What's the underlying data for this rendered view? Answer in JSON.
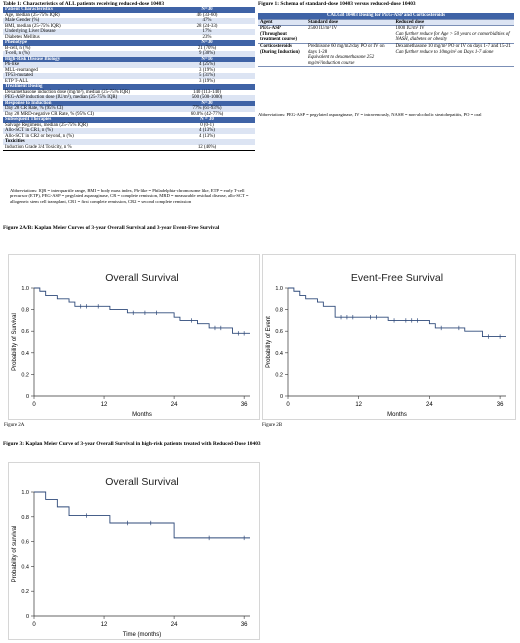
{
  "table1": {
    "caption": "Table 1: Characteristics of ALL patients receiving reduced-dose 10403",
    "rows": [
      {
        "kind": "sec",
        "label": "Patient Characteristics",
        "value": "N=30"
      },
      {
        "kind": "row",
        "label": "Age, median (25-75% IQR)",
        "value": "46 (33-60)"
      },
      {
        "kind": "row",
        "label": "Male Gender (%)",
        "value": "47%"
      },
      {
        "kind": "row",
        "label": "BMI, median (25-75% IQR)",
        "value": "28 (24-33)"
      },
      {
        "kind": "row",
        "label": "Underlying Liver Disease",
        "value": "17%"
      },
      {
        "kind": "row",
        "label": "Diabetes Mellitus",
        "value": "23%"
      },
      {
        "kind": "sec",
        "label": "Phenotype",
        "value": "N=30"
      },
      {
        "kind": "row",
        "label": "B-cell, n (%)",
        "value": "21 (70%)"
      },
      {
        "kind": "row",
        "label": "T-cell, n (%)",
        "value": "9 (30%)"
      },
      {
        "kind": "sec",
        "label": "High-Risk Disease Biology",
        "value": "N=16"
      },
      {
        "kind": "row",
        "label": "Ph-like",
        "value": "4 (25%)"
      },
      {
        "kind": "row",
        "label": "MLL-rearranged",
        "value": "3 (19%)"
      },
      {
        "kind": "row",
        "label": "TP53-mutated",
        "value": "5 (31%)"
      },
      {
        "kind": "row",
        "label": "ETP T-ALL",
        "value": "3 (19%)"
      },
      {
        "kind": "sec",
        "label": "Treatment Dosing",
        "value": ""
      },
      {
        "kind": "row",
        "label": "Dexamethasone induction dose (mg/m²), median (25-75% IQR)",
        "value": "140 (113-140)"
      },
      {
        "kind": "row",
        "label": "PEG-ASP induction dose (IU/m²), median (25-75% IQR)",
        "value": "500 (500-1000)"
      },
      {
        "kind": "sec",
        "label": "Response to Induction",
        "value": "N=30"
      },
      {
        "kind": "row",
        "label": "Day 28 CR Rate, % (95% CI)",
        "value": "77% (61-93%)"
      },
      {
        "kind": "row",
        "label": "Day 28 MRD-negative CR Rate, % (95% CI)",
        "value": "60.0% (42-77%)"
      },
      {
        "kind": "sec",
        "label": "Subsequent Therapies",
        "value": "N = 30"
      },
      {
        "kind": "row",
        "label": "Salvage Regimens, median (25-75% IQR)",
        "value": "0 (0-1)"
      },
      {
        "kind": "row",
        "label": "Allo-SCT in CR1, n (%)",
        "value": "4 (13%)"
      },
      {
        "kind": "row",
        "label": "Allo-SCT in CR2 or beyond, n (%)",
        "value": "4 (13%)"
      },
      {
        "kind": "sub",
        "label": "Toxicities",
        "value": ""
      },
      {
        "kind": "row",
        "label": "Induction Grade 3/4 Toxicity, n %",
        "value": "12 (40%)"
      }
    ],
    "abbrev": "Abbreviations: IQR = interquartile range, BMI = body mass index, Ph-like = Philadelphia-chromosome like, ETP = early T-cell precursor (ETP), PEG-ASP = pegylated asparaginase, CR = complete remission, MRD = measurable residual disease, allo-SCT = allogeneic stem cell transplant, CR1 = first complete remission, CR2 = second complete remission"
  },
  "figure1": {
    "caption": "Figure 1: Schema of standard-dose 10403 versus reduced-dose 10403",
    "header": "CALGB 10403 Dosing for PEG-ASP and Corticosteroids",
    "columns": [
      "Agent",
      "Standard dose",
      "Reduced dose"
    ],
    "rows": [
      {
        "agent": "PEG-ASP (Throughout treatment course)",
        "standard": "2500 IU/m² IV",
        "standard_note": "",
        "reduced": "1000 IU/m² IV",
        "reduced_note": "Can further reduce for Age > 50 years or comorbidities of NASH, diabetes or obesity"
      },
      {
        "agent": "Corticosteroids (During Induction)",
        "standard": "Prednisone 60 mg/m2/day PO or IV on days 1-28",
        "standard_note": "Equivalent to dexamethasone 252 mg/m²/induction course",
        "reduced": "Dexamethasone 10 mg/m² PO or IV on days 1-7 and 15-21",
        "reduced_note": "Can further reduce to 10mg/m² on Days 1-7 alone"
      }
    ],
    "abbrev": "Abbreviations: PEG-ASP = pegylated asparaginase, IV = intravenously, NASH = non-alcoholic steatohepatitis, PO = oral"
  },
  "figure2": {
    "caption": "Figure 2A/B: Kaplan Meier Curves of 3-year Overall Survival and 3-year Event-Free Survival",
    "label_a": "Figure 2A",
    "label_b": "Figure 2B"
  },
  "figure3": {
    "caption": "Figure 3: Kaplan Meier Curve of 3-year Overall Survival in high-risk patients treated with Reduced-Dose 10403"
  },
  "chart_data": [
    {
      "type": "line",
      "step": true,
      "title": "Overall Survival",
      "xlabel": "Months",
      "ylabel": "Probability of Survival",
      "xlim": [
        0,
        37
      ],
      "ylim": [
        0,
        1
      ],
      "xticks": [
        0,
        12,
        24,
        36
      ],
      "yticks": [
        0,
        0.2,
        0.4,
        0.6,
        0.8,
        1
      ],
      "ytick_labels": [
        "0",
        "0.2",
        "0.4",
        "0.6",
        "0.8",
        "1.0"
      ],
      "series": [
        {
          "x": [
            0,
            1,
            2,
            4,
            6,
            7,
            10,
            13,
            14,
            16,
            23,
            24,
            25,
            26,
            28,
            30,
            33,
            34,
            36,
            37
          ],
          "y": [
            1.0,
            0.97,
            0.93,
            0.9,
            0.87,
            0.83,
            0.83,
            0.8,
            0.8,
            0.77,
            0.77,
            0.73,
            0.7,
            0.7,
            0.67,
            0.63,
            0.63,
            0.58,
            0.58,
            0.58
          ]
        }
      ],
      "censor_x": [
        8,
        9,
        11,
        17,
        19,
        21,
        27,
        31,
        32,
        35,
        36
      ],
      "grid": false
    },
    {
      "type": "line",
      "step": true,
      "title": "Event-Free Survival",
      "xlabel": "Months",
      "ylabel": "Probability of Event",
      "xlim": [
        0,
        37
      ],
      "ylim": [
        0,
        1
      ],
      "xticks": [
        0,
        12,
        24,
        36
      ],
      "yticks": [
        0,
        0.2,
        0.4,
        0.6,
        0.8,
        1
      ],
      "ytick_labels": [
        "0",
        "0.2",
        "0.4",
        "0.6",
        "0.8",
        "1.0"
      ],
      "series": [
        {
          "x": [
            0,
            1,
            2,
            3,
            5,
            6,
            8,
            13,
            16,
            17,
            24,
            25,
            28,
            30,
            32,
            33,
            37
          ],
          "y": [
            1.0,
            0.97,
            0.93,
            0.9,
            0.87,
            0.83,
            0.73,
            0.73,
            0.73,
            0.7,
            0.67,
            0.63,
            0.63,
            0.6,
            0.6,
            0.55,
            0.55
          ]
        }
      ],
      "censor_x": [
        9,
        10,
        11,
        14,
        15,
        18,
        20,
        21,
        22,
        26,
        29,
        34,
        36
      ],
      "grid": false
    },
    {
      "type": "line",
      "step": true,
      "title": "Overall Survival",
      "xlabel": "Time (months)",
      "ylabel": "Probability of survival",
      "xlim": [
        0,
        37
      ],
      "ylim": [
        0,
        1
      ],
      "xticks": [
        0,
        12,
        24,
        36
      ],
      "yticks": [
        0,
        0.2,
        0.4,
        0.6,
        0.8,
        1
      ],
      "ytick_labels": [
        "0",
        "0.2",
        "0.4",
        "0.6",
        "0.8",
        "1.0"
      ],
      "series": [
        {
          "x": [
            0,
            2,
            4,
            6,
            13,
            24,
            36,
            37
          ],
          "y": [
            1.0,
            0.94,
            0.88,
            0.81,
            0.75,
            0.63,
            0.63,
            0.63
          ]
        }
      ],
      "censor_x": [
        9,
        16,
        20,
        30,
        36
      ],
      "grid": false
    }
  ]
}
